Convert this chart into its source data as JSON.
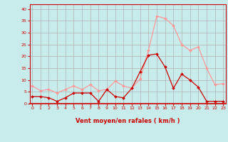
{
  "x": [
    0,
    1,
    2,
    3,
    4,
    5,
    6,
    7,
    8,
    9,
    10,
    11,
    12,
    13,
    14,
    15,
    16,
    17,
    18,
    19,
    20,
    21,
    22,
    23
  ],
  "rafales": [
    7.5,
    5.5,
    6,
    4.5,
    6,
    7.5,
    6,
    8,
    5.5,
    6,
    9.5,
    7.5,
    6.5,
    10.5,
    22.5,
    37,
    36,
    33,
    25,
    22.5,
    24,
    15,
    8,
    8.5
  ],
  "moyen": [
    3,
    3,
    2.5,
    1,
    2.5,
    4.5,
    4.5,
    4.5,
    1,
    6,
    3,
    2.5,
    6.5,
    13.5,
    20.5,
    21,
    15.5,
    6.5,
    12.5,
    10,
    7,
    1,
    1,
    1
  ],
  "bg_color": "#c8ecec",
  "grid_color": "#b0b0b0",
  "line_color_rafales": "#ff9999",
  "line_color_moyen": "#cc0000",
  "marker_color_rafales": "#ff9999",
  "marker_color_moyen": "#cc0000",
  "xlabel": "Vent moyen/en rafales ( km/h )",
  "xlabel_color": "#cc0000",
  "tick_color": "#cc0000",
  "axis_line_color": "#cc0000",
  "ylim": [
    0,
    42
  ],
  "yticks": [
    0,
    5,
    10,
    15,
    20,
    25,
    30,
    35,
    40
  ],
  "xticks": [
    0,
    1,
    2,
    3,
    4,
    5,
    6,
    7,
    8,
    9,
    10,
    11,
    12,
    13,
    14,
    15,
    16,
    17,
    18,
    19,
    20,
    21,
    22,
    23
  ]
}
